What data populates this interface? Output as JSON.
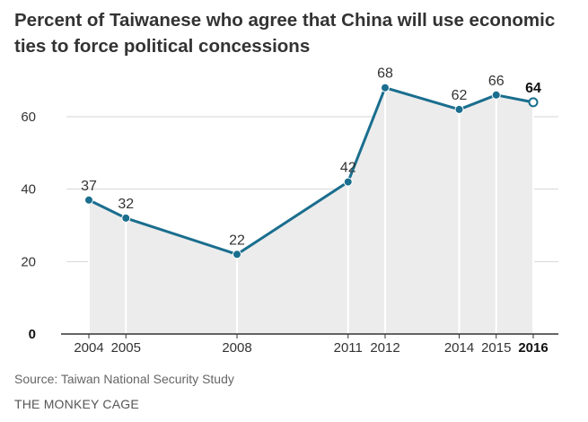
{
  "title": "Percent of Taiwanese who agree that China will use economic ties to force political concessions",
  "source": "Source: Taiwan National Security Study",
  "brand": "THE MONKEY CAGE",
  "colors": {
    "line": "#1a6e8e",
    "area": "#ececec",
    "grid": "#d6d6d6",
    "baseline": "#333333"
  },
  "chart_data": {
    "type": "line",
    "title": "Percent of Taiwanese who agree that China will use economic ties to force political concessions",
    "xlabel": "",
    "ylabel": "",
    "x": [
      2004,
      2005,
      2008,
      2011,
      2012,
      2014,
      2015,
      2016
    ],
    "x_tick_labels": [
      "2004",
      "2005",
      "2008",
      "2011",
      "2012",
      "2014",
      "2015",
      "2016"
    ],
    "series": [
      {
        "values": [
          37,
          32,
          22,
          42,
          68,
          62,
          66,
          64
        ]
      }
    ],
    "data_labels": [
      "37",
      "32",
      "22",
      "42",
      "68",
      "62",
      "66",
      "64"
    ],
    "highlight_last": true,
    "yticks": [
      0,
      20,
      40,
      60
    ],
    "ylim": [
      0,
      70
    ],
    "xlim": [
      2003.3,
      2016.6
    ],
    "grid": true,
    "area_fill": true
  }
}
